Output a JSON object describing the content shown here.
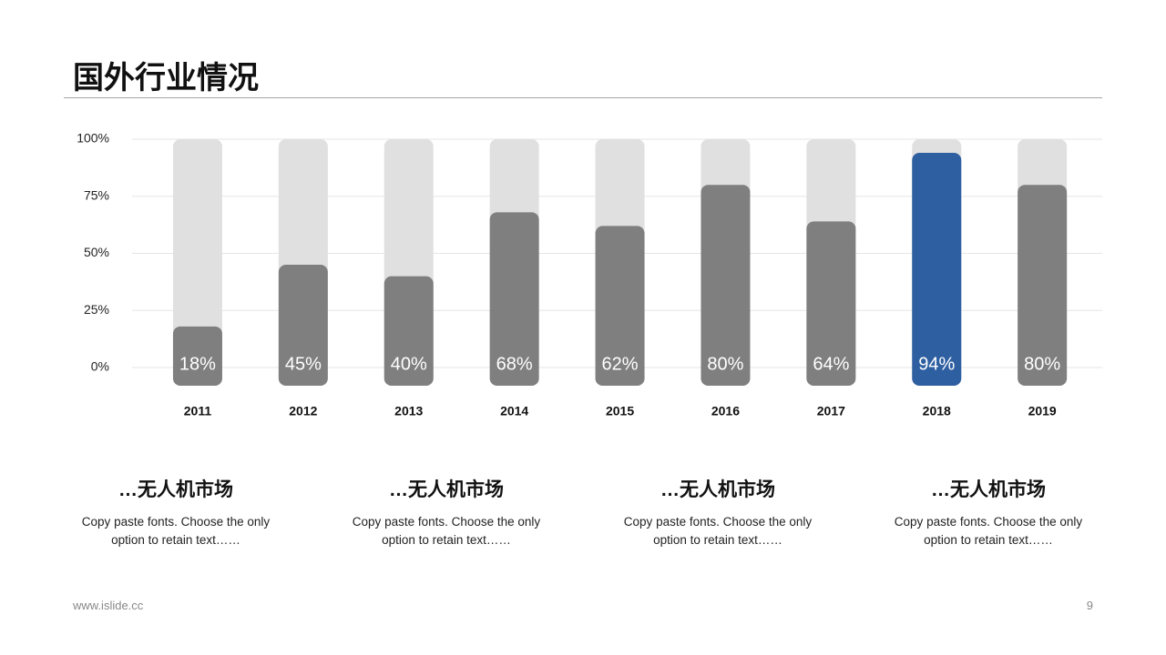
{
  "header": {
    "title": "国外行业情况"
  },
  "chart_data": {
    "type": "bar",
    "categories": [
      "2011",
      "2012",
      "2013",
      "2014",
      "2015",
      "2016",
      "2017",
      "2018",
      "2019"
    ],
    "values": [
      18,
      45,
      40,
      68,
      62,
      80,
      64,
      94,
      80
    ],
    "value_labels": [
      "18%",
      "45%",
      "40%",
      "68%",
      "62%",
      "80%",
      "64%",
      "94%",
      "80%"
    ],
    "colors": [
      "#7f7f7f",
      "#7f7f7f",
      "#7f7f7f",
      "#7f7f7f",
      "#7f7f7f",
      "#7f7f7f",
      "#7f7f7f",
      "#2e5fa1",
      "#7f7f7f"
    ],
    "track_color": "#e0e0e0",
    "ylim": [
      0,
      100
    ],
    "yticks": [
      {
        "value": 0,
        "label": "0%"
      },
      {
        "value": 25,
        "label": "25%"
      },
      {
        "value": 50,
        "label": "50%"
      },
      {
        "value": 75,
        "label": "75%"
      },
      {
        "value": 100,
        "label": "100%"
      }
    ],
    "grid": true
  },
  "cards": [
    {
      "heading": "…无人机市场",
      "text": "Copy paste fonts. Choose the only option to retain text……"
    },
    {
      "heading": "…无人机市场",
      "text": "Copy paste fonts. Choose the only option to retain text……"
    },
    {
      "heading": "…无人机市场",
      "text": "Copy paste fonts. Choose the only option to retain text……"
    },
    {
      "heading": "…无人机市场",
      "text": "Copy paste fonts. Choose the only option to retain text……"
    }
  ],
  "footer": {
    "site": "www.islide.cc",
    "page": 9
  }
}
